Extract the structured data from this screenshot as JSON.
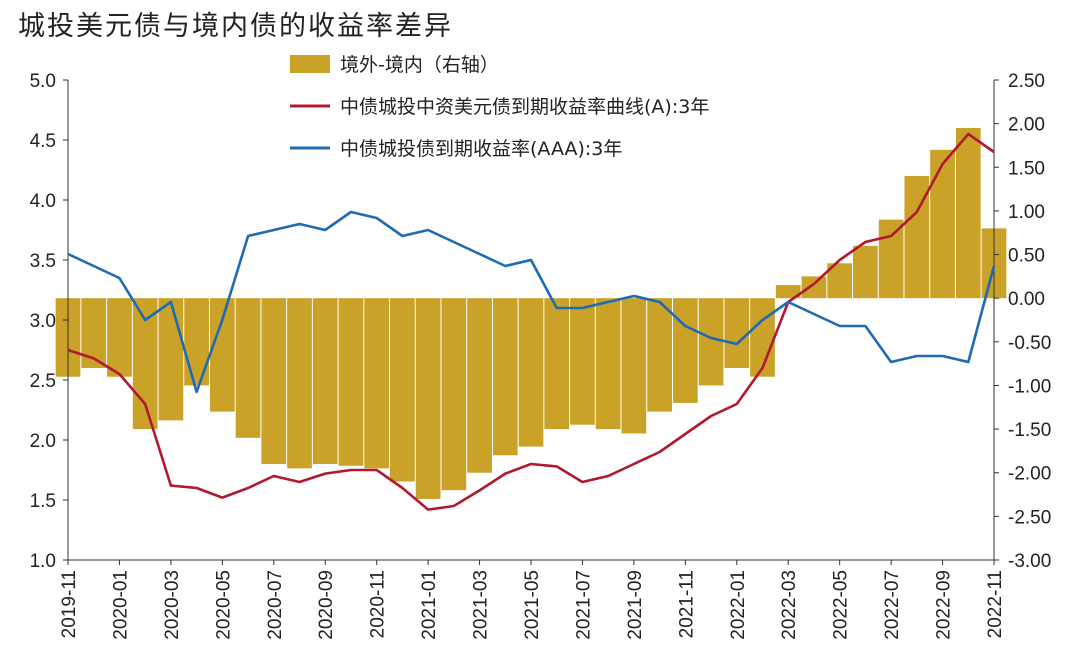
{
  "chart_data": {
    "type": "bar+line",
    "title": "城投美元债与境内债的收益率差异",
    "legend_position": "top-center",
    "grid": false,
    "x_ticks": [
      "2019-11",
      "2020-01",
      "2020-03",
      "2020-05",
      "2020-07",
      "2020-09",
      "2020-11",
      "2021-01",
      "2021-03",
      "2021-05",
      "2021-07",
      "2021-09",
      "2021-11",
      "2022-01",
      "2022-03",
      "2022-05",
      "2022-07",
      "2022-09",
      "2022-11"
    ],
    "xlim": [
      "2019-11",
      "2022-11"
    ],
    "y_left": {
      "ylim": [
        1.0,
        5.0
      ],
      "ticks": [
        "1.0",
        "1.5",
        "2.0",
        "2.5",
        "3.0",
        "3.5",
        "4.0",
        "4.5",
        "5.0"
      ]
    },
    "y_right": {
      "ylim": [
        -3.0,
        2.5
      ],
      "ticks": [
        "-3.00",
        "-2.50",
        "-2.00",
        "-1.50",
        "-1.00",
        "-0.50",
        "0.00",
        "0.50",
        "1.00",
        "1.50",
        "2.00",
        "2.50"
      ]
    },
    "series": [
      {
        "name": "境外-境内（右轴）",
        "kind": "bar",
        "axis": "right",
        "color": "#C9A227",
        "x": [
          "2019-11",
          "2019-12",
          "2020-01",
          "2020-02",
          "2020-03",
          "2020-04",
          "2020-05",
          "2020-06",
          "2020-07",
          "2020-08",
          "2020-09",
          "2020-10",
          "2020-11",
          "2020-12",
          "2021-01",
          "2021-02",
          "2021-03",
          "2021-04",
          "2021-05",
          "2021-06",
          "2021-07",
          "2021-08",
          "2021-09",
          "2021-10",
          "2021-11",
          "2021-12",
          "2022-01",
          "2022-02",
          "2022-03",
          "2022-04",
          "2022-05",
          "2022-06",
          "2022-07",
          "2022-08",
          "2022-09",
          "2022-10",
          "2022-11"
        ],
        "values": [
          -0.9,
          -0.8,
          -0.9,
          -1.5,
          -1.4,
          -1.0,
          -1.3,
          -1.6,
          -1.9,
          -1.95,
          -1.9,
          -1.92,
          -1.95,
          -2.1,
          -2.3,
          -2.2,
          -2.0,
          -1.8,
          -1.7,
          -1.5,
          -1.45,
          -1.5,
          -1.55,
          -1.3,
          -1.2,
          -1.0,
          -0.8,
          -0.9,
          0.15,
          0.25,
          0.4,
          0.6,
          0.9,
          1.4,
          1.7,
          1.95,
          0.8
        ]
      },
      {
        "name": "中债城投中资美元债到期收益率曲线(A):3年",
        "kind": "line",
        "axis": "left",
        "color": "#B0192E",
        "x": [
          "2019-11",
          "2019-12",
          "2020-01",
          "2020-02",
          "2020-03",
          "2020-04",
          "2020-05",
          "2020-06",
          "2020-07",
          "2020-08",
          "2020-09",
          "2020-10",
          "2020-11",
          "2020-12",
          "2021-01",
          "2021-02",
          "2021-03",
          "2021-04",
          "2021-05",
          "2021-06",
          "2021-07",
          "2021-08",
          "2021-09",
          "2021-10",
          "2021-11",
          "2021-12",
          "2022-01",
          "2022-02",
          "2022-03",
          "2022-04",
          "2022-05",
          "2022-06",
          "2022-07",
          "2022-08",
          "2022-09",
          "2022-10",
          "2022-11"
        ],
        "values": [
          2.75,
          2.68,
          2.55,
          2.3,
          1.62,
          1.6,
          1.52,
          1.6,
          1.7,
          1.65,
          1.72,
          1.75,
          1.75,
          1.6,
          1.42,
          1.45,
          1.58,
          1.72,
          1.8,
          1.78,
          1.65,
          1.7,
          1.8,
          1.9,
          2.05,
          2.2,
          2.3,
          2.6,
          3.15,
          3.3,
          3.5,
          3.65,
          3.7,
          3.9,
          4.3,
          4.55,
          4.4
        ]
      },
      {
        "name": "中债城投债到期收益率(AAA):3年",
        "kind": "line",
        "axis": "left",
        "color": "#1F6AB5",
        "x": [
          "2019-11",
          "2019-12",
          "2020-01",
          "2020-02",
          "2020-03",
          "2020-04",
          "2020-05",
          "2020-06",
          "2020-07",
          "2020-08",
          "2020-09",
          "2020-10",
          "2020-11",
          "2020-12",
          "2021-01",
          "2021-02",
          "2021-03",
          "2021-04",
          "2021-05",
          "2021-06",
          "2021-07",
          "2021-08",
          "2021-09",
          "2021-10",
          "2021-11",
          "2021-12",
          "2022-01",
          "2022-02",
          "2022-03",
          "2022-04",
          "2022-05",
          "2022-06",
          "2022-07",
          "2022-08",
          "2022-09",
          "2022-10",
          "2022-11"
        ],
        "values": [
          3.55,
          3.45,
          3.35,
          3.0,
          3.15,
          2.4,
          3.0,
          3.7,
          3.75,
          3.8,
          3.75,
          3.9,
          3.85,
          3.7,
          3.75,
          3.65,
          3.55,
          3.45,
          3.5,
          3.1,
          3.1,
          3.15,
          3.2,
          3.15,
          2.95,
          2.85,
          2.8,
          3.0,
          3.15,
          3.05,
          2.95,
          2.95,
          2.65,
          2.7,
          2.7,
          2.65,
          3.45
        ]
      }
    ]
  }
}
